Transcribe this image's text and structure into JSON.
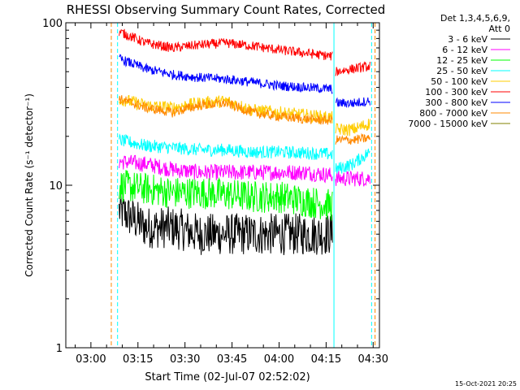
{
  "chart_data": {
    "type": "line",
    "title": "RHESSI Observing Summary Count Rates, Corrected",
    "xlabel": "Start Time (02-Jul-07 02:52:02)",
    "ylabel": "Corrected Count Rate (s⁻¹ detector⁻¹)",
    "yscale": "log",
    "ylim": [
      1,
      100
    ],
    "xlim_minutes": [
      0,
      100
    ],
    "x_tick_labels": [
      "03:00",
      "03:15",
      "03:30",
      "03:45",
      "04:00",
      "04:15",
      "04:30"
    ],
    "x_tick_minutes": [
      8,
      23,
      38,
      53,
      68,
      83,
      98
    ],
    "y_tick_labels": [
      "1",
      "10",
      "100"
    ],
    "y_tick_values": [
      1,
      10,
      100
    ],
    "legend_header": [
      "Det 1,3,4,5,6,9,",
      "Att 0"
    ],
    "legend_position": "right",
    "footer_date": "15-Oct-2021 20:25",
    "segment_minutes": [
      [
        17,
        85
      ],
      [
        86,
        97
      ]
    ],
    "series": [
      {
        "name": "3 - 6 keV",
        "color": "#000000",
        "seg1_values": [
          7.0,
          5.5,
          5.5,
          5.0,
          5.0,
          5.0,
          5.0,
          5.0,
          5.0
        ],
        "seg2_values": [],
        "noise": 0.13
      },
      {
        "name": "6 - 12 keV",
        "color": "#ff00ff",
        "seg1_values": [
          14.0,
          13.5,
          12.5,
          12.0,
          12.0,
          12.0,
          12.0,
          12.0,
          11.5
        ],
        "seg2_values": [
          11.0,
          11.0,
          11.0
        ],
        "noise": 0.05
      },
      {
        "name": "12 - 25 keV",
        "color": "#00ff00",
        "seg1_values": [
          10.0,
          9.5,
          9.0,
          9.0,
          8.8,
          8.5,
          8.5,
          8.0,
          7.5
        ],
        "seg2_values": [],
        "noise": 0.1
      },
      {
        "name": "25 - 50 keV",
        "color": "#00ffff",
        "seg1_values": [
          19.0,
          17.5,
          17.0,
          16.5,
          16.5,
          16.0,
          16.0,
          15.8,
          15.5
        ],
        "seg2_values": [
          12.5,
          13.5,
          16.0
        ],
        "noise": 0.04
      },
      {
        "name": "50 - 100 keV",
        "color": "#ffcc00",
        "seg1_values": [
          34.0,
          31.0,
          30.0,
          32.0,
          33.0,
          29.0,
          28.0,
          27.0,
          26.0
        ],
        "seg2_values": [
          22.0,
          22.0,
          24.0
        ],
        "noise": 0.04
      },
      {
        "name": "100 - 300 keV",
        "color": "#ff0000",
        "seg1_values": [
          88.0,
          75.0,
          70.0,
          73.0,
          75.0,
          72.0,
          68.0,
          65.0,
          62.0
        ],
        "seg2_values": [
          50.0,
          52.0,
          54.0
        ],
        "noise": 0.03
      },
      {
        "name": "300 - 800 keV",
        "color": "#0000ff",
        "seg1_values": [
          60.0,
          52.0,
          48.0,
          46.0,
          45.0,
          43.0,
          41.0,
          40.0,
          39.0
        ],
        "seg2_values": [
          32.0,
          32.0,
          33.0
        ],
        "noise": 0.03
      },
      {
        "name": "800 - 7000 keV",
        "color": "#ff8800",
        "seg1_values": [
          34.0,
          30.0,
          28.0,
          31.0,
          32.0,
          28.0,
          26.5,
          25.5,
          25.0
        ],
        "seg2_values": [
          19.0,
          19.0,
          19.5
        ],
        "noise": 0.03
      },
      {
        "name": "7000 - 15000 keV",
        "color": "#808000",
        "seg1_values": [],
        "seg2_values": [],
        "noise": 0.0
      }
    ],
    "vertical_markers": [
      {
        "minute": 14.5,
        "color": "#ff8800",
        "style": "dashed"
      },
      {
        "minute": 16.5,
        "color": "#00ffff",
        "style": "dashed"
      },
      {
        "minute": 85.5,
        "color": "#00ffff",
        "style": "solid"
      },
      {
        "minute": 97.5,
        "color": "#00ffff",
        "style": "dashed"
      },
      {
        "minute": 98.6,
        "color": "#ff8800",
        "style": "dashed"
      }
    ]
  }
}
